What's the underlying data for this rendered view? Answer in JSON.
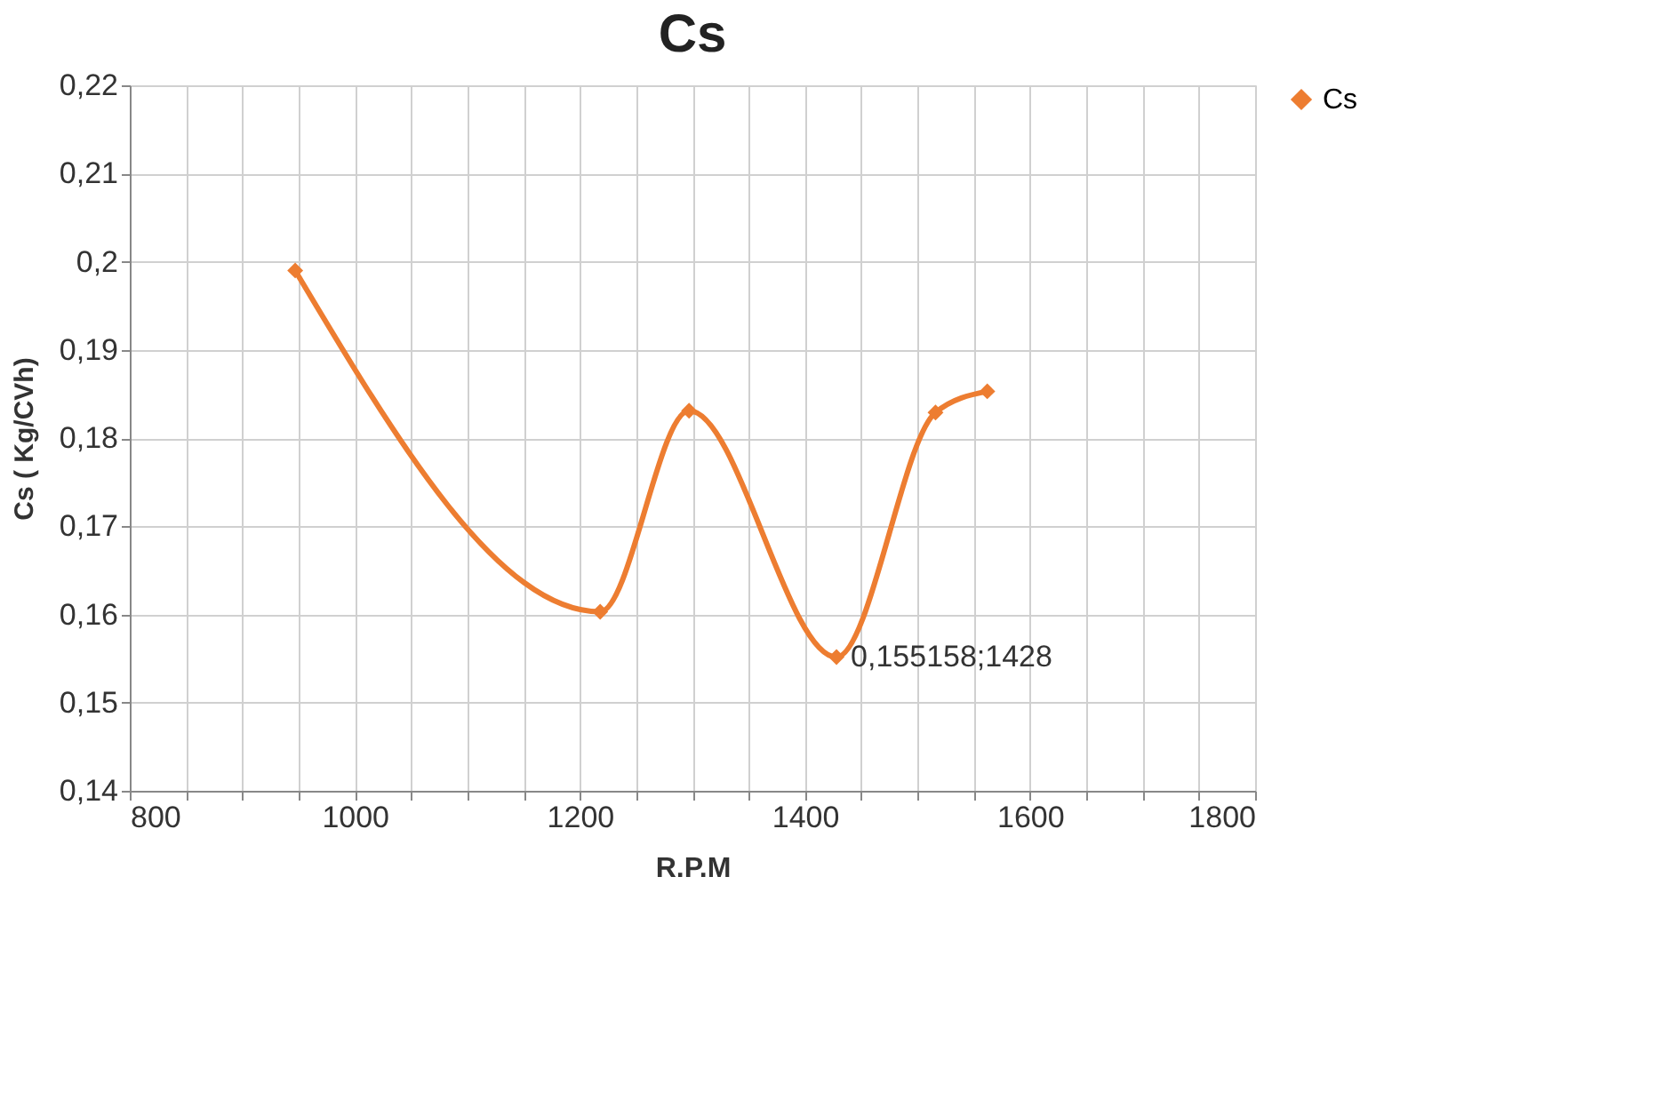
{
  "chart_data": {
    "type": "line",
    "title": "Cs",
    "xlabel": "R.P.M",
    "ylabel": "Cs ( Kg/CVh)",
    "x": [
      947,
      1218,
      1297,
      1428,
      1516,
      1562
    ],
    "series": [
      {
        "name": "Cs",
        "color": "#ed7d31",
        "values": [
          0.199,
          0.1603,
          0.1831,
          0.155158,
          0.1829,
          0.1853
        ]
      }
    ],
    "xlim": [
      800,
      1800
    ],
    "xticks": [
      800,
      {
        "value": 850,
        "label": null
      },
      {
        "value": 900,
        "label": null
      },
      {
        "value": 950,
        "label": null
      },
      1000,
      {
        "value": 1050,
        "label": null
      },
      {
        "value": 1100,
        "label": null
      },
      {
        "value": 1150,
        "label": null
      },
      1200,
      {
        "value": 1250,
        "label": null
      },
      {
        "value": 1300,
        "label": null
      },
      {
        "value": 1350,
        "label": null
      },
      1400,
      {
        "value": 1450,
        "label": null
      },
      {
        "value": 1500,
        "label": null
      },
      {
        "value": 1550,
        "label": null
      },
      1600,
      {
        "value": 1650,
        "label": null
      },
      {
        "value": 1700,
        "label": null
      },
      {
        "value": 1750,
        "label": null
      },
      1800
    ],
    "ylim": [
      0.14,
      0.22
    ],
    "yticks": [
      {
        "value": 0.14,
        "label": "0,14"
      },
      {
        "value": 0.15,
        "label": "0,15"
      },
      {
        "value": 0.16,
        "label": "0,16"
      },
      {
        "value": 0.17,
        "label": "0,17"
      },
      {
        "value": 0.18,
        "label": "0,18"
      },
      {
        "value": 0.19,
        "label": "0,19"
      },
      {
        "value": 0.2,
        "label": "0,2"
      },
      {
        "value": 0.21,
        "label": "0,21"
      },
      {
        "value": 0.22,
        "label": "0,22"
      }
    ],
    "annotations": [
      {
        "text": "0,155158;1428",
        "x": 1428,
        "y": 0.155158
      }
    ],
    "grid": true,
    "legend": "right",
    "marker": "diamond",
    "line_style": "solid"
  }
}
